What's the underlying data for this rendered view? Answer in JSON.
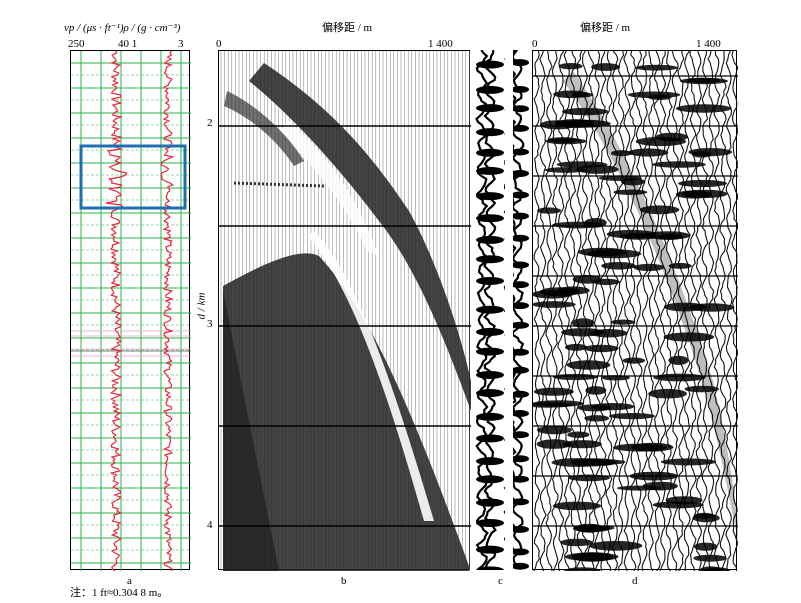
{
  "log_panel": {
    "title": "vp / (μs · ft⁻¹)ρ / (g · cm⁻³)",
    "ticks": [
      "250",
      "40 1",
      "3"
    ],
    "label": "a",
    "line_color": "#e8243c",
    "grid_color": "#2bb34a",
    "box_color": "#1f6fb0"
  },
  "panel_b": {
    "title": "偏移距 / m",
    "ticks": [
      "0",
      "1 400"
    ],
    "label": "b"
  },
  "panel_c": {
    "label": "c"
  },
  "panel_d": {
    "title": "偏移距 / m",
    "ticks": [
      "0",
      "1 400"
    ],
    "label": "d"
  },
  "depth_axis": {
    "label": "d / km",
    "ticks": [
      "2",
      "3",
      "4"
    ]
  },
  "note": "注：1 ft≈0.304 8 m。"
}
